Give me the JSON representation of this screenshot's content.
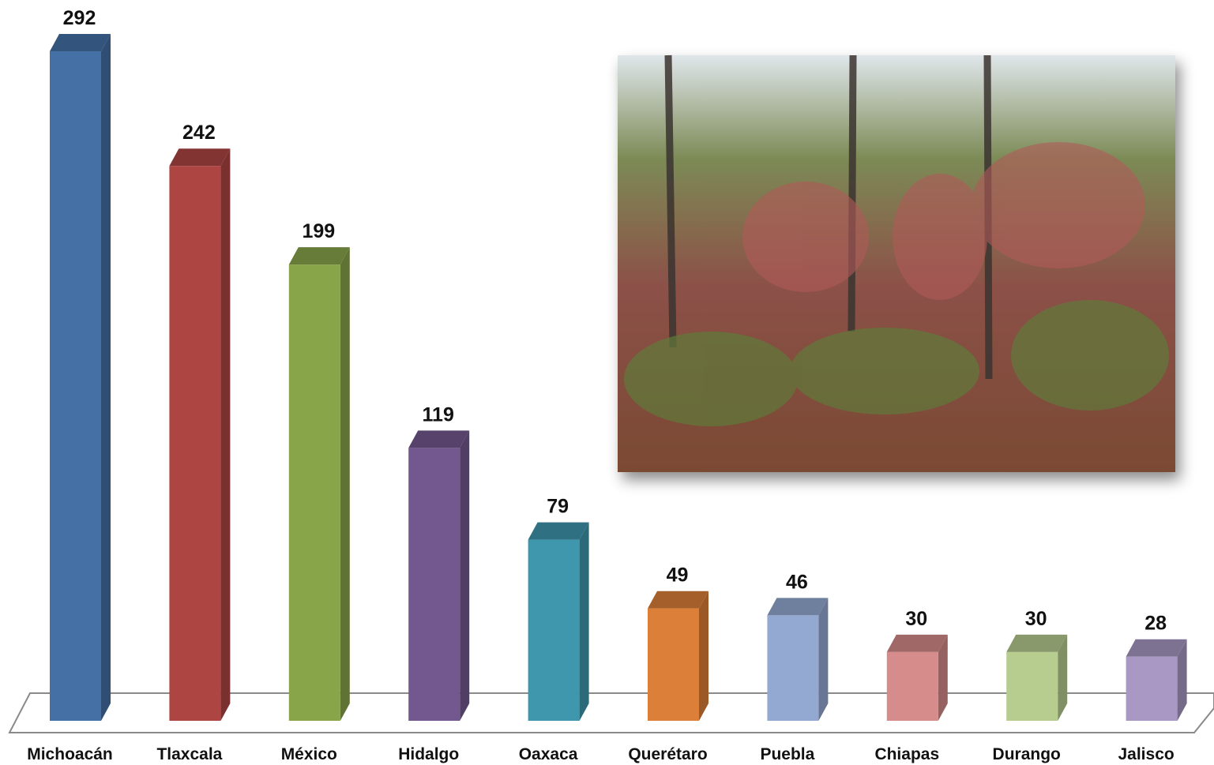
{
  "chart_data": {
    "type": "bar",
    "categories": [
      "Michoacán",
      "Tlaxcala",
      "México",
      "Hidalgo",
      "Oaxaca",
      "Querétaro",
      "Puebla",
      "Chiapas",
      "Durango",
      "Jalisco"
    ],
    "values": [
      292,
      242,
      199,
      119,
      79,
      49,
      46,
      30,
      30,
      28
    ],
    "colors": [
      "#4470a6",
      "#ad4542",
      "#89a54a",
      "#73588f",
      "#3f97ad",
      "#dc7f38",
      "#94a9d2",
      "#d58c8a",
      "#b7cc8f",
      "#a898c3"
    ]
  }
}
